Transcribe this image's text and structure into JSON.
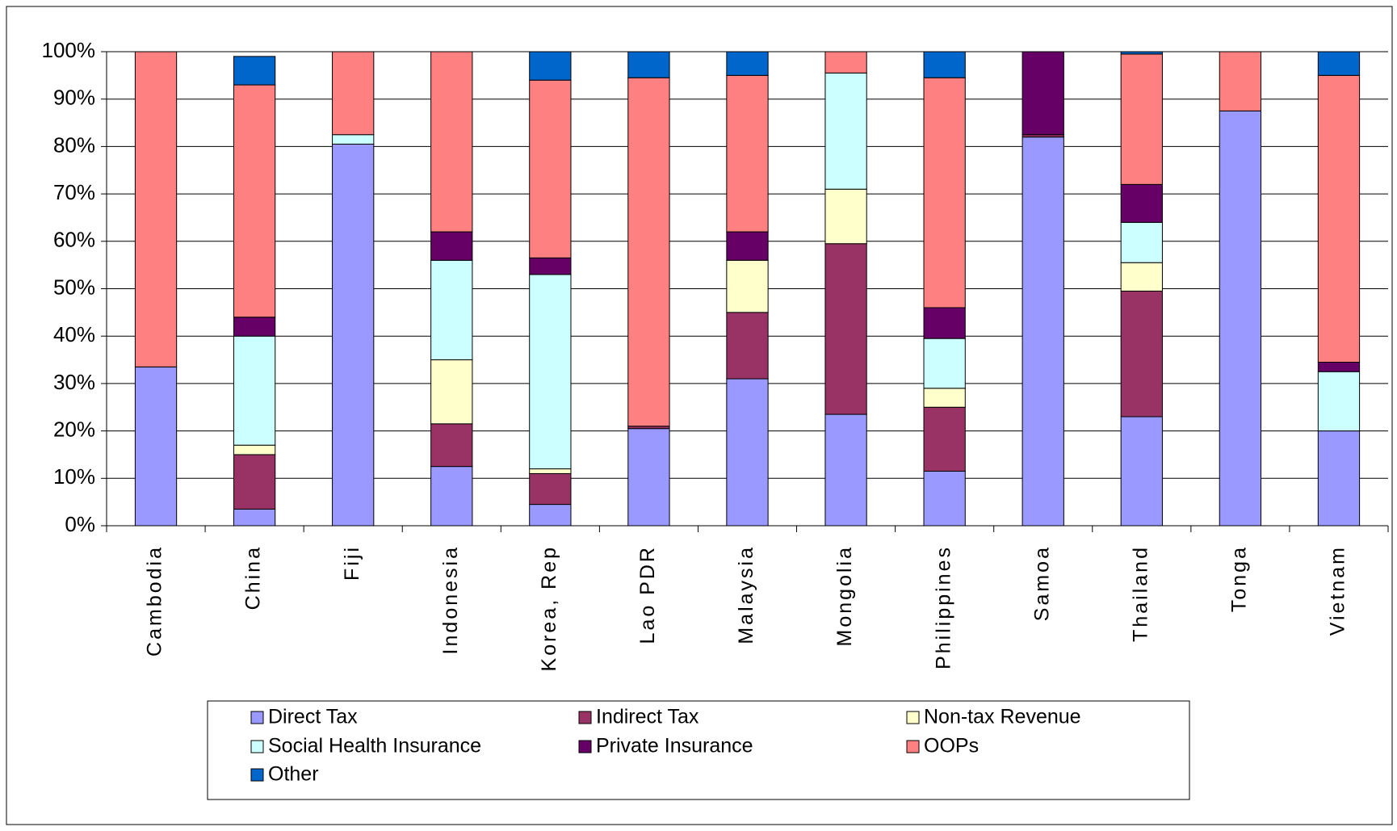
{
  "chart_data": {
    "type": "stacked_bar",
    "categories": [
      "Cambodia",
      "China",
      "Fiji",
      "Indonesia",
      "Korea, Rep",
      "Lao PDR",
      "Malaysia",
      "Mongolia",
      "Philippines",
      "Samoa",
      "Thailand",
      "Tonga",
      "Vietnam"
    ],
    "series": [
      {
        "name": "Direct Tax",
        "color": "#9999ff",
        "values": [
          33.5,
          3.5,
          80.5,
          12.5,
          4.5,
          20.5,
          31,
          23.5,
          11.5,
          82,
          23,
          87.5,
          20
        ]
      },
      {
        "name": "Indirect Tax",
        "color": "#993366",
        "values": [
          0,
          11.5,
          0,
          9,
          6.5,
          0.5,
          14,
          36,
          13.5,
          0.5,
          26.5,
          0,
          0
        ]
      },
      {
        "name": "Non-tax Revenue",
        "color": "#ffffcc",
        "values": [
          0,
          2,
          0,
          13.5,
          1,
          0,
          11,
          11.5,
          4,
          0,
          6,
          0,
          0
        ]
      },
      {
        "name": "Social Health Insurance",
        "color": "#ccffff",
        "values": [
          0,
          23,
          2,
          21,
          41,
          0,
          0,
          24.5,
          10.5,
          0,
          8.5,
          0,
          12.5
        ]
      },
      {
        "name": "Private Insurance",
        "color": "#660066",
        "values": [
          0,
          4,
          0,
          6,
          3.5,
          0,
          6,
          0,
          6.5,
          17.5,
          8,
          0,
          2
        ]
      },
      {
        "name": "OOPs",
        "color": "#ff8080",
        "values": [
          66.5,
          49,
          17.5,
          38,
          37.5,
          73.5,
          33,
          4.5,
          48.5,
          0,
          27.5,
          12.5,
          60.5
        ]
      },
      {
        "name": "Other",
        "color": "#0066cc",
        "values": [
          0,
          6,
          0,
          0,
          6,
          5.5,
          5,
          0,
          5.5,
          0,
          0.5,
          0,
          5
        ]
      }
    ],
    "ylim": [
      0,
      100
    ],
    "yticks": [
      {
        "value": 0,
        "label": "0%"
      },
      {
        "value": 10,
        "label": "10%"
      },
      {
        "value": 20,
        "label": "20%"
      },
      {
        "value": 30,
        "label": "30%"
      },
      {
        "value": 40,
        "label": "40%"
      },
      {
        "value": 50,
        "label": "50%"
      },
      {
        "value": 60,
        "label": "60%"
      },
      {
        "value": 70,
        "label": "70%"
      },
      {
        "value": 80,
        "label": "80%"
      },
      {
        "value": 90,
        "label": "90%"
      },
      {
        "value": 100,
        "label": "100%"
      }
    ],
    "grid": true,
    "legend": "bottom"
  }
}
